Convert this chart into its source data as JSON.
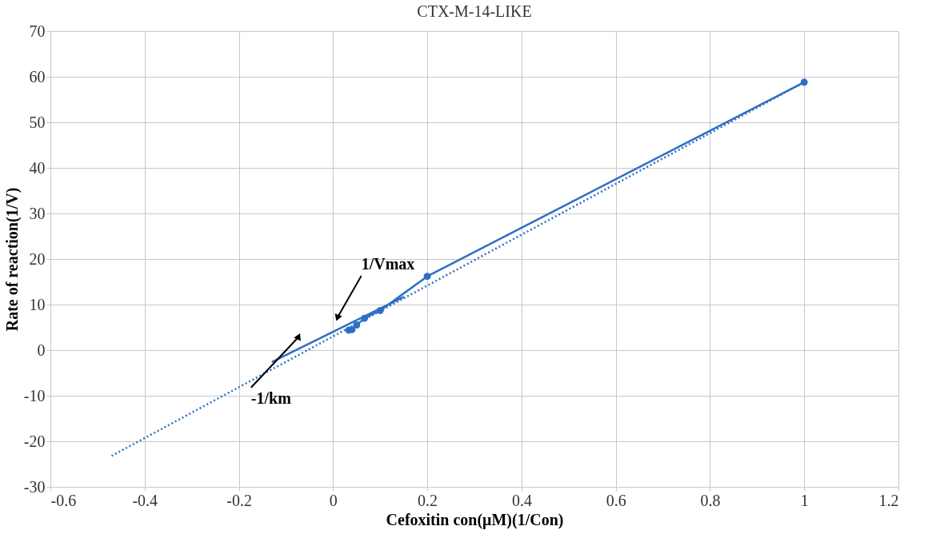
{
  "chart_data": {
    "type": "line",
    "title": "CTX-M-14-LIKE",
    "xlabel": "Cefoxitin con(μM)(1/Con)",
    "ylabel": "Rate of reaction(1/V)",
    "xlim": [
      -0.6,
      1.2
    ],
    "xticks": [
      -0.6,
      -0.4,
      -0.2,
      0,
      0.2,
      0.4,
      0.6,
      0.8,
      1,
      1.2
    ],
    "ylim": [
      -30,
      70
    ],
    "yticks": [
      -30,
      -20,
      -10,
      0,
      10,
      20,
      30,
      40,
      50,
      60,
      70
    ],
    "grid": true,
    "series": [
      {
        "color": "#2e6fc4",
        "marker": "circle",
        "line_style": "solid",
        "x": [
          0.0333,
          0.04,
          0.05,
          0.0667,
          0.1,
          0.2,
          1
        ],
        "values": [
          4.4,
          4.5,
          5.5,
          7.0,
          8.7,
          16.2,
          58.8
        ]
      },
      {
        "color": "#2e6fc4",
        "marker": "none",
        "line_style": "solid",
        "x": [
          -0.13,
          0.15
        ],
        "values": [
          -2.6,
          11.7
        ]
      },
      {
        "color": "#2e6fc4",
        "marker": "none",
        "line_style": "dotted",
        "x": [
          -0.47,
          1
        ],
        "values": [
          -23.2,
          58.8
        ]
      }
    ],
    "annotations": [
      {
        "text": "1/Vmax",
        "x": 0.01,
        "y": 7.3
      },
      {
        "text": "-1/km",
        "x": -0.074,
        "y": 2.8
      }
    ]
  }
}
